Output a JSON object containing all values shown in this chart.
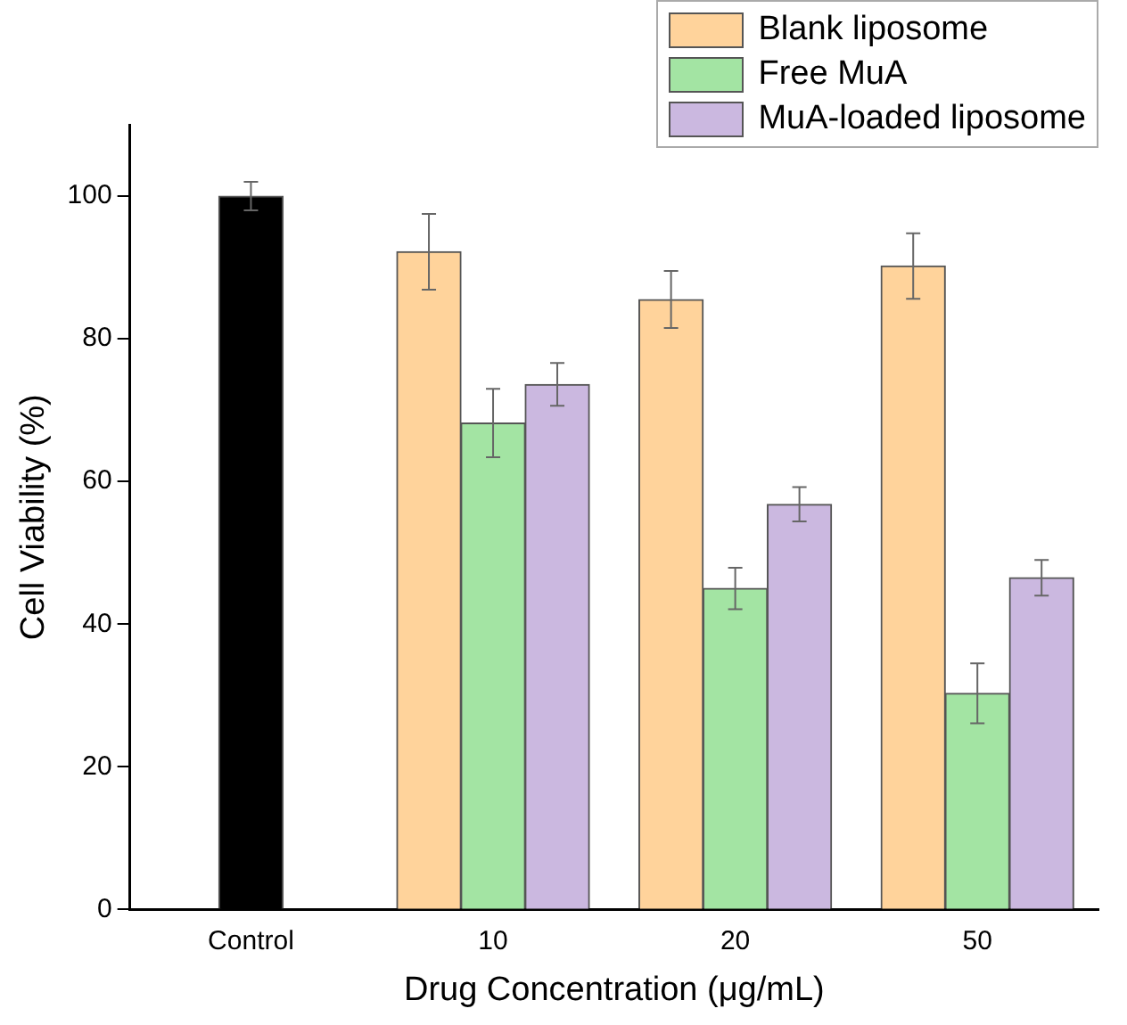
{
  "chart_data": {
    "type": "bar",
    "xlabel": "Drug Concentration (μg/mL)",
    "ylabel": "Cell Viability (%)",
    "categories": [
      "Control",
      "10",
      "20",
      "50"
    ],
    "series": [
      {
        "color": "#000000",
        "values": [
          100,
          null,
          null,
          null
        ],
        "errors": [
          2,
          null,
          null,
          null
        ]
      },
      {
        "name": "Blank liposome",
        "color": "#ffd39b",
        "values": [
          null,
          92.2,
          85.5,
          90.2
        ],
        "errors": [
          null,
          5.3,
          4,
          4.6
        ]
      },
      {
        "name": "Free MuA",
        "color": "#a3e4a3",
        "values": [
          null,
          68.2,
          45,
          30.3
        ],
        "errors": [
          null,
          4.8,
          2.9,
          4.2
        ]
      },
      {
        "name": "MuA-loaded liposome",
        "color": "#cbb8e0",
        "values": [
          null,
          73.6,
          56.8,
          46.5
        ],
        "errors": [
          null,
          3,
          2.4,
          2.5
        ]
      }
    ],
    "ylim": [
      0,
      110
    ],
    "yticks": [
      0,
      20,
      40,
      60,
      80,
      100
    ],
    "grid": false,
    "legend": "top right"
  }
}
